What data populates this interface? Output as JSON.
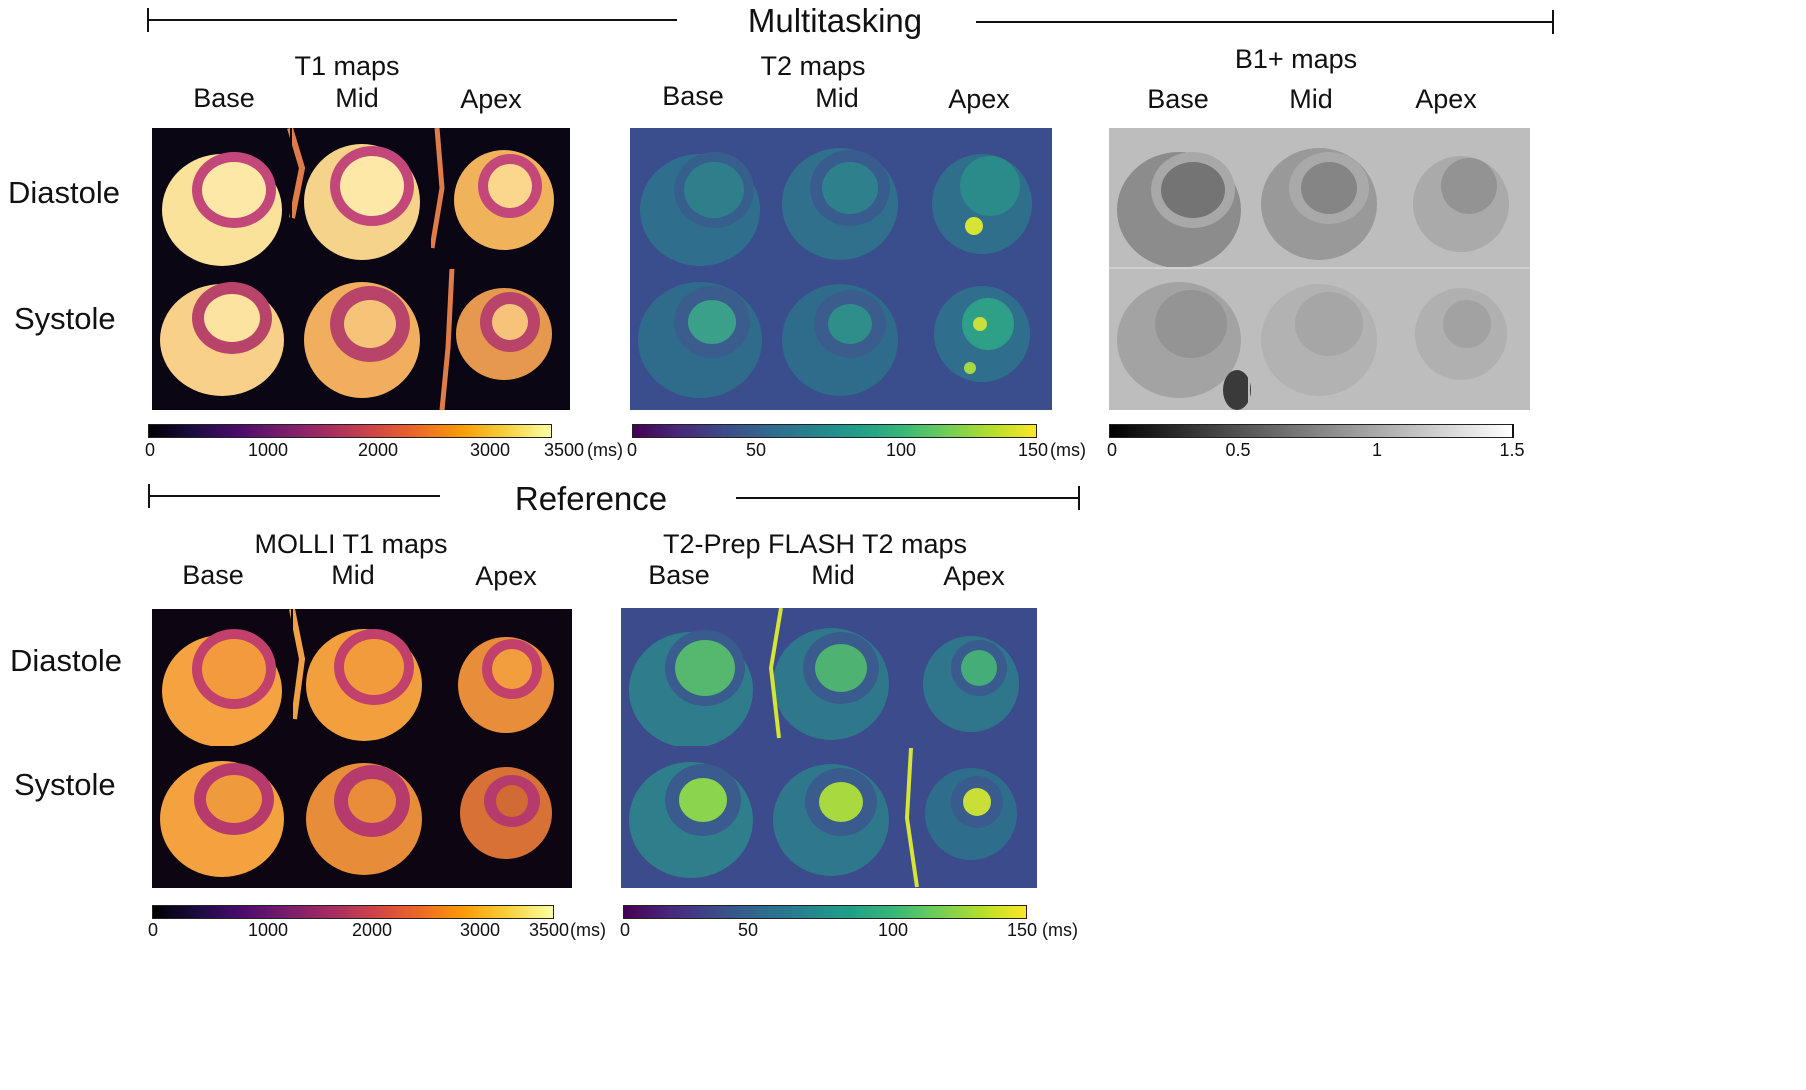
{
  "sections": {
    "multitasking": "Multitasking",
    "reference": "Reference"
  },
  "rows": {
    "diastole": "Diastole",
    "systole": "Systole"
  },
  "columns": {
    "base": "Base",
    "mid": "Mid",
    "apex": "Apex"
  },
  "maps": {
    "t1": {
      "title": "T1 maps",
      "colormap": "inferno",
      "ticks": [
        "0",
        "1000",
        "2000",
        "3000",
        "3500"
      ],
      "unit": "(ms)"
    },
    "t2": {
      "title": "T2 maps",
      "colormap": "viridis",
      "ticks": [
        "0",
        "50",
        "100",
        "150"
      ],
      "unit": "(ms)"
    },
    "b1": {
      "title": "B1+ maps",
      "colormap": "gray",
      "ticks": [
        "0",
        "0.5",
        "1",
        "1.5"
      ]
    },
    "molli": {
      "title": "MOLLI T1 maps",
      "colormap": "inferno",
      "ticks": [
        "0",
        "1000",
        "2000",
        "3000",
        "3500"
      ],
      "unit": "(ms)"
    },
    "flash": {
      "title": "T2-Prep FLASH T2 maps",
      "colormap": "viridis",
      "ticks": [
        "0",
        "50",
        "100",
        "150"
      ],
      "unit": "(ms)"
    }
  },
  "colors": {
    "inferno_bg": "#0b0614",
    "inferno_muscle": "#b8446a",
    "inferno_blood": "#fbe29a",
    "molli_bg": "#0d0612",
    "molli_muscle": "#c2406c",
    "molli_blood": "#f5a340",
    "viridis_bg": "#3b4b8c",
    "viridis_muscle": "#2f6e8c",
    "viridis_blood": "#31968c",
    "viridis_hot": "#d6e436",
    "gray_bg": "#b9b9b9",
    "gray_muscle": "#8f8f8f",
    "gray_blood": "#777777"
  }
}
